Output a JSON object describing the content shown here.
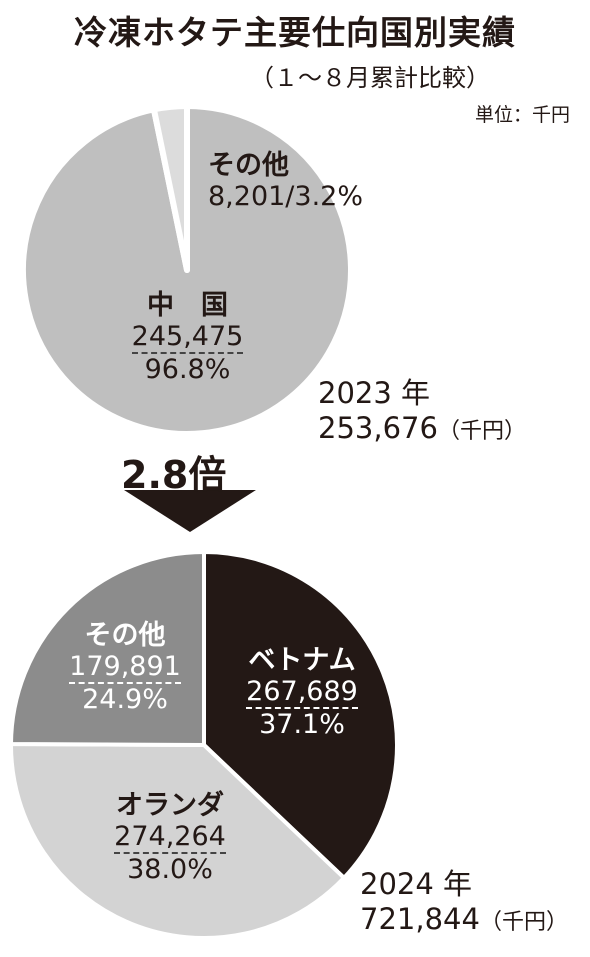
{
  "title": "冷凍ホタテ主要仕向国別実績",
  "subtitle": "（１～８月累計比較）",
  "unit": "単位：千円",
  "multiplier": "2.8倍",
  "colors": {
    "china": "#bfbfbf",
    "other_2023": "#dcdcdc",
    "vietnam": "#231815",
    "netherlands": "#d3d3d3",
    "other_2024": "#8c8c8c"
  },
  "chart_data": [
    {
      "type": "pie",
      "year_label": "2023 年",
      "total": "253,676",
      "total_unit": "（千円）",
      "slices": [
        {
          "name": "中　国",
          "value": 245475,
          "value_label": "245,475",
          "percent": 96.8,
          "percent_label": "96.8%"
        },
        {
          "name": "その他",
          "value": 8201,
          "value_label": "8,201/3.2%",
          "percent": 3.2,
          "percent_label": ""
        }
      ]
    },
    {
      "type": "pie",
      "year_label": "2024 年",
      "total": "721,844",
      "total_unit": "（千円）",
      "slices": [
        {
          "name": "ベトナム",
          "value": 267689,
          "value_label": "267,689",
          "percent": 37.1,
          "percent_label": "37.1%"
        },
        {
          "name": "オランダ",
          "value": 274264,
          "value_label": "274,264",
          "percent": 38.0,
          "percent_label": "38.0%"
        },
        {
          "name": "その他",
          "value": 179891,
          "value_label": "179,891",
          "percent": 24.9,
          "percent_label": "24.9%"
        }
      ]
    }
  ]
}
